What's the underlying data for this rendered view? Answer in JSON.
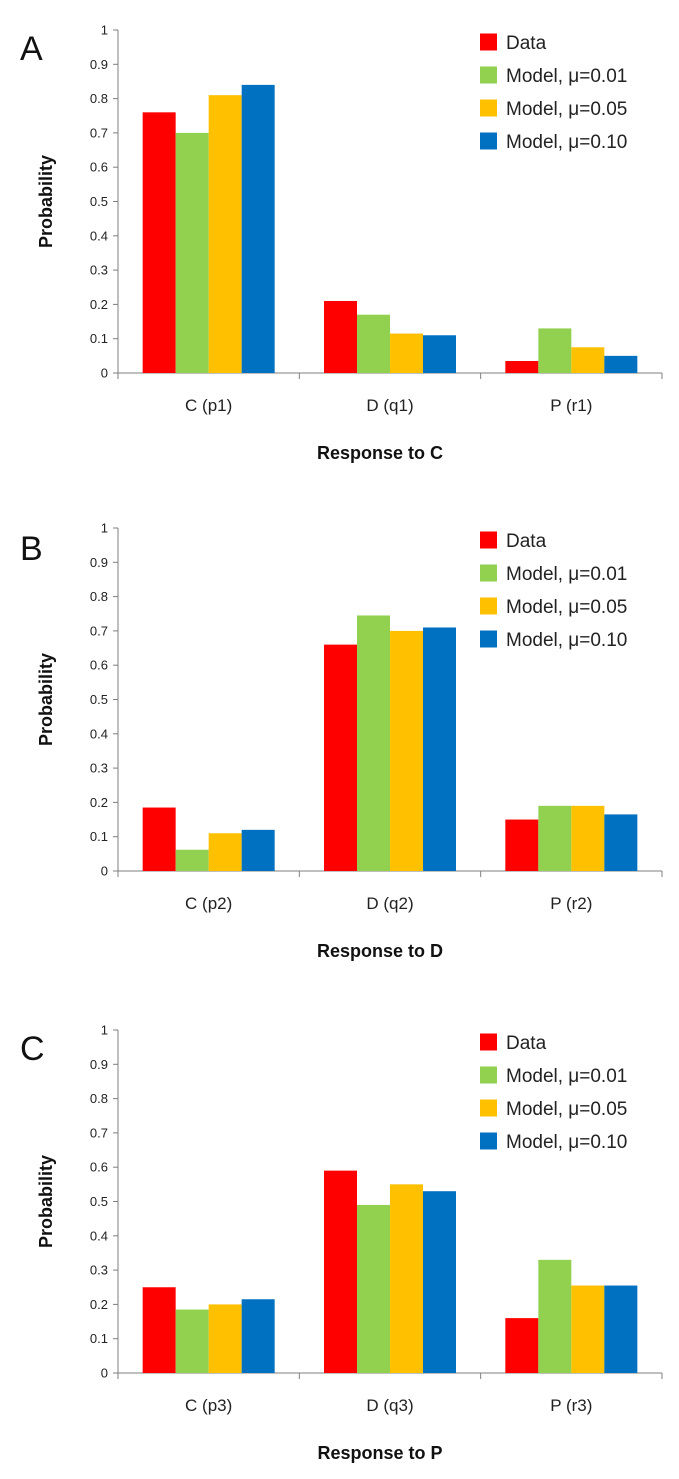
{
  "chart_data": [
    {
      "type": "bar",
      "panel_label": "A",
      "categories": [
        "C (p1)",
        "D (q1)",
        "P (r1)"
      ],
      "series": [
        {
          "name": "Data",
          "color": "#ff0000",
          "values": [
            0.76,
            0.21,
            0.035
          ]
        },
        {
          "name": "Model, μ=0.01",
          "color": "#92d050",
          "values": [
            0.7,
            0.17,
            0.13
          ]
        },
        {
          "name": "Model, μ=0.05",
          "color": "#ffc000",
          "values": [
            0.81,
            0.115,
            0.075
          ]
        },
        {
          "name": "Model, μ=0.10",
          "color": "#0070c0",
          "values": [
            0.84,
            0.11,
            0.05
          ]
        }
      ],
      "xlabel": "Response to C",
      "ylabel": "Probability",
      "ylim": [
        0,
        1
      ],
      "yticks": [
        "0",
        "0.1",
        "0.2",
        "0.3",
        "0.4",
        "0.5",
        "0.6",
        "0.7",
        "0.8",
        "0.9",
        "1"
      ],
      "legend_position": "top-right",
      "grid": false
    },
    {
      "type": "bar",
      "panel_label": "B",
      "categories": [
        "C (p2)",
        "D (q2)",
        "P (r2)"
      ],
      "series": [
        {
          "name": "Data",
          "color": "#ff0000",
          "values": [
            0.185,
            0.66,
            0.15
          ]
        },
        {
          "name": "Model, μ=0.01",
          "color": "#92d050",
          "values": [
            0.062,
            0.745,
            0.19
          ]
        },
        {
          "name": "Model, μ=0.05",
          "color": "#ffc000",
          "values": [
            0.11,
            0.7,
            0.19
          ]
        },
        {
          "name": "Model, μ=0.10",
          "color": "#0070c0",
          "values": [
            0.12,
            0.71,
            0.165
          ]
        }
      ],
      "xlabel": "Response to D",
      "ylabel": "Probability",
      "ylim": [
        0,
        1
      ],
      "yticks": [
        "0",
        "0.1",
        "0.2",
        "0.3",
        "0.4",
        "0.5",
        "0.6",
        "0.7",
        "0.8",
        "0.9",
        "1"
      ],
      "legend_position": "top-right",
      "grid": false
    },
    {
      "type": "bar",
      "panel_label": "C",
      "categories": [
        "C (p3)",
        "D (q3)",
        "P (r3)"
      ],
      "series": [
        {
          "name": "Data",
          "color": "#ff0000",
          "values": [
            0.25,
            0.59,
            0.16
          ]
        },
        {
          "name": "Model, μ=0.01",
          "color": "#92d050",
          "values": [
            0.185,
            0.49,
            0.33
          ]
        },
        {
          "name": "Model, μ=0.05",
          "color": "#ffc000",
          "values": [
            0.2,
            0.55,
            0.255
          ]
        },
        {
          "name": "Model, μ=0.10",
          "color": "#0070c0",
          "values": [
            0.215,
            0.53,
            0.255
          ]
        }
      ],
      "xlabel": "Response to P",
      "ylabel": "Probability",
      "ylim": [
        0,
        1
      ],
      "yticks": [
        "0",
        "0.1",
        "0.2",
        "0.3",
        "0.4",
        "0.5",
        "0.6",
        "0.7",
        "0.8",
        "0.9",
        "1"
      ],
      "legend_position": "top-right",
      "grid": false
    }
  ]
}
